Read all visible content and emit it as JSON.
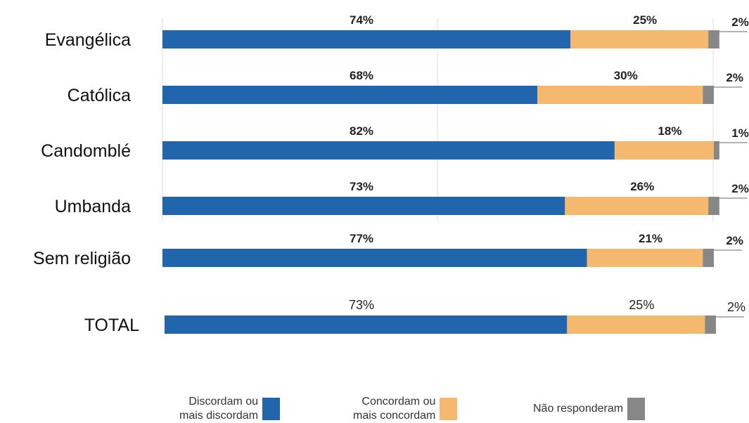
{
  "chart_data": {
    "type": "bar",
    "orientation": "horizontal",
    "stacked": true,
    "categories": [
      "Evangélica",
      "Católica",
      "Candomblé",
      "Umbanda",
      "Sem religião",
      "TOTAL"
    ],
    "series": [
      {
        "name": "Discordam ou mais discordam",
        "color": "#2166ac",
        "values": [
          74,
          68,
          82,
          73,
          77,
          73
        ],
        "labels": [
          "74%",
          "68%",
          "82%",
          "73%",
          "77%",
          "73%"
        ]
      },
      {
        "name": "Concordam ou mais concordam",
        "color": "#f4b96e",
        "values": [
          25,
          30,
          18,
          26,
          21,
          25
        ],
        "labels": [
          "25%",
          "30%",
          "18%",
          "26%",
          "21%",
          "25%"
        ]
      },
      {
        "name": "Não responderam",
        "color": "#878787",
        "values": [
          2,
          2,
          1,
          2,
          2,
          2
        ],
        "labels": [
          "2%",
          "2%",
          "1%",
          "2%",
          "2%",
          "2%"
        ]
      }
    ],
    "grid": true,
    "legend_position": "bottom"
  },
  "legend": [
    {
      "label": "Discordam ou\nmais discordam",
      "color": "#2166ac"
    },
    {
      "label": "Concordam ou\nmais concordam",
      "color": "#f4b96e"
    },
    {
      "label": "Não responderam",
      "color": "#878787"
    }
  ]
}
